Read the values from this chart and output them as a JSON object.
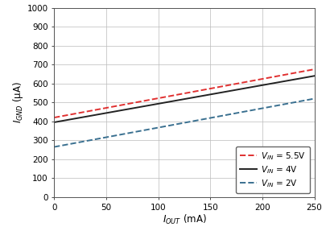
{
  "xlabel": "$I_{OUT}$ (mA)",
  "ylabel": "$I_{GND}$ (μA)",
  "xlim": [
    0,
    250
  ],
  "ylim": [
    0,
    1000
  ],
  "xticks": [
    0,
    50,
    100,
    150,
    200,
    250
  ],
  "yticks": [
    0,
    100,
    200,
    300,
    400,
    500,
    600,
    700,
    800,
    900,
    1000
  ],
  "lines": [
    {
      "label": "$V_{IN}$ = 5.5V",
      "x": [
        0,
        250
      ],
      "y": [
        420,
        675
      ],
      "color": "#e03030",
      "linestyle": "dashed",
      "linewidth": 1.4
    },
    {
      "label": "$V_{IN}$ = 4V",
      "x": [
        0,
        250
      ],
      "y": [
        395,
        640
      ],
      "color": "#222222",
      "linestyle": "solid",
      "linewidth": 1.4
    },
    {
      "label": "$V_{IN}$ = 2V",
      "x": [
        0,
        250
      ],
      "y": [
        265,
        520
      ],
      "color": "#3a7090",
      "linestyle": "dashed",
      "linewidth": 1.4
    }
  ],
  "legend_loc": "lower right",
  "grid_color": "#bbbbbb",
  "background_color": "#ffffff",
  "tick_labelsize": 7.5,
  "axis_labelsize": 8.5,
  "legend_fontsize": 7.5,
  "figure_width": 4.06,
  "figure_height": 2.87,
  "dpi": 100
}
